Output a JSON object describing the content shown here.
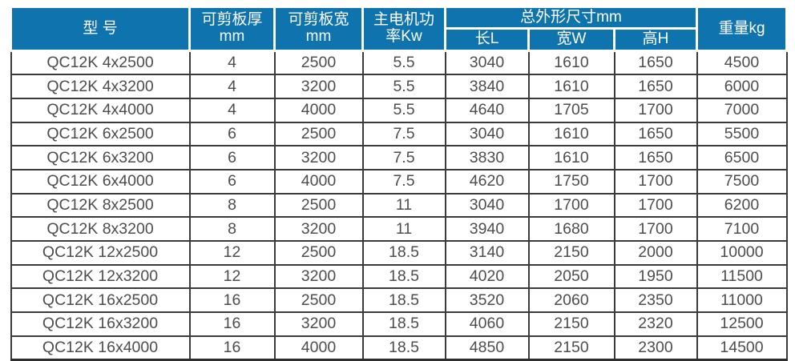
{
  "chart_data": {
    "type": "table",
    "header": {
      "model": "型 号",
      "thickness": "可剪板厚\nmm",
      "plate_width": "可剪板宽\nmm",
      "power": "主电机功\n率Kw",
      "dimensions_group": "总外形尺寸mm",
      "length": "长L",
      "width": "宽W",
      "height": "高H",
      "weight": "重量kg"
    },
    "column_keys": [
      "model",
      "thickness-mm",
      "plate-width-mm",
      "power-kw",
      "length-l",
      "width-w",
      "height-h",
      "weight-kg"
    ],
    "rows": [
      [
        "QC12K 4x2500",
        "4",
        "2500",
        "5.5",
        "3040",
        "1610",
        "1650",
        "4500"
      ],
      [
        "QC12K 4x3200",
        "4",
        "3200",
        "5.5",
        "3840",
        "1610",
        "1650",
        "6000"
      ],
      [
        "QC12K 4x4000",
        "4",
        "4000",
        "5.5",
        "4640",
        "1705",
        "1700",
        "7000"
      ],
      [
        "QC12K 6x2500",
        "6",
        "2500",
        "7.5",
        "3040",
        "1610",
        "1650",
        "5500"
      ],
      [
        "QC12K 6x3200",
        "6",
        "3200",
        "7.5",
        "3830",
        "1610",
        "1650",
        "6500"
      ],
      [
        "QC12K 6x4000",
        "6",
        "4000",
        "7.5",
        "4620",
        "1750",
        "1700",
        "7500"
      ],
      [
        "QC12K 8x2500",
        "8",
        "2500",
        "11",
        "3040",
        "1700",
        "1700",
        "6200"
      ],
      [
        "QC12K 8x3200",
        "8",
        "3200",
        "11",
        "3940",
        "1680",
        "1700",
        "7100"
      ],
      [
        "QC12K 12x2500",
        "12",
        "2500",
        "18.5",
        "3140",
        "2150",
        "2000",
        "10000"
      ],
      [
        "QC12K 12x3200",
        "12",
        "3200",
        "18.5",
        "4020",
        "2050",
        "1950",
        "11500"
      ],
      [
        "QC12K 16x2500",
        "16",
        "2500",
        "18.5",
        "3520",
        "2060",
        "2350",
        "11000"
      ],
      [
        "QC12K 16x3200",
        "16",
        "3200",
        "18.5",
        "4060",
        "2150",
        "2320",
        "12500"
      ],
      [
        "QC12K 16x4000",
        "16",
        "4000",
        "18.5",
        "4850",
        "2150",
        "2300",
        "14500"
      ]
    ]
  },
  "colors": {
    "header_bg": "#0f73ad",
    "header_text": "#ffffff",
    "body_text": "#4d4d4d",
    "border": "#3b3b3b",
    "background": "#ffffff"
  }
}
